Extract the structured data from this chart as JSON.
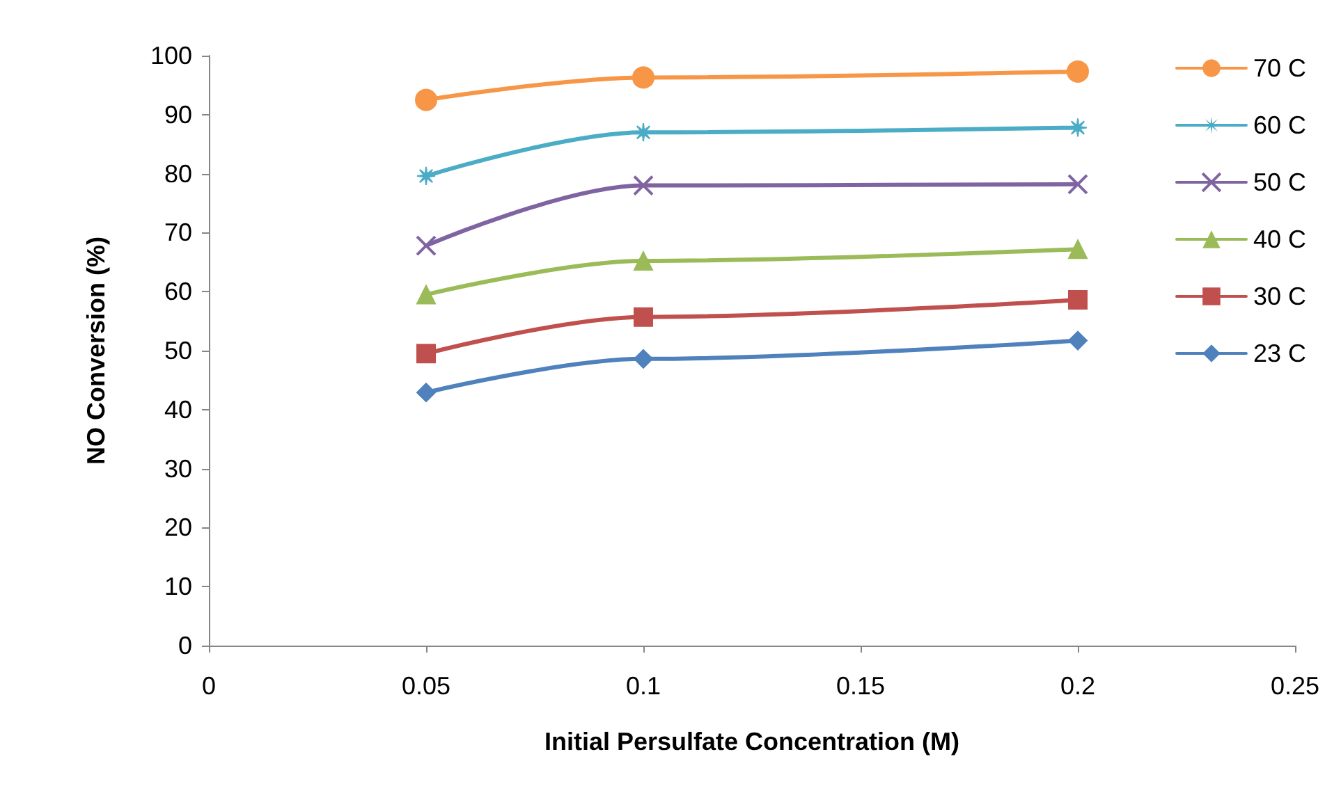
{
  "chart_data": {
    "type": "line",
    "xlabel": "Initial Persulfate Concentration (M)",
    "ylabel": "NO Conversion (%)",
    "x": [
      0.05,
      0.1,
      0.2
    ],
    "series": [
      {
        "name": "70 C",
        "color": "#f79646",
        "marker": "circle",
        "values": [
          92.5,
          96.3,
          97.3
        ]
      },
      {
        "name": "60 C",
        "color": "#4bacc6",
        "marker": "star",
        "values": [
          79.6,
          87.0,
          87.8
        ]
      },
      {
        "name": "50 C",
        "color": "#8064a2",
        "marker": "cross",
        "values": [
          67.8,
          78.0,
          78.2
        ]
      },
      {
        "name": "40 C",
        "color": "#9bbb59",
        "marker": "triangle",
        "values": [
          59.5,
          65.2,
          67.2
        ]
      },
      {
        "name": "30 C",
        "color": "#c0504d",
        "marker": "square",
        "values": [
          49.5,
          55.7,
          58.6
        ]
      },
      {
        "name": "23 C",
        "color": "#4f81bd",
        "marker": "diamond",
        "values": [
          42.9,
          48.6,
          51.7
        ]
      }
    ],
    "xlim": [
      0,
      0.25
    ],
    "xticks": [
      0,
      0.05,
      0.1,
      0.15,
      0.2,
      0.25
    ],
    "ylim": [
      0,
      100
    ],
    "yticks": [
      0,
      10,
      20,
      30,
      40,
      50,
      60,
      70,
      80,
      90,
      100
    ],
    "grid": false,
    "legend": "right",
    "line_style": "solid"
  }
}
